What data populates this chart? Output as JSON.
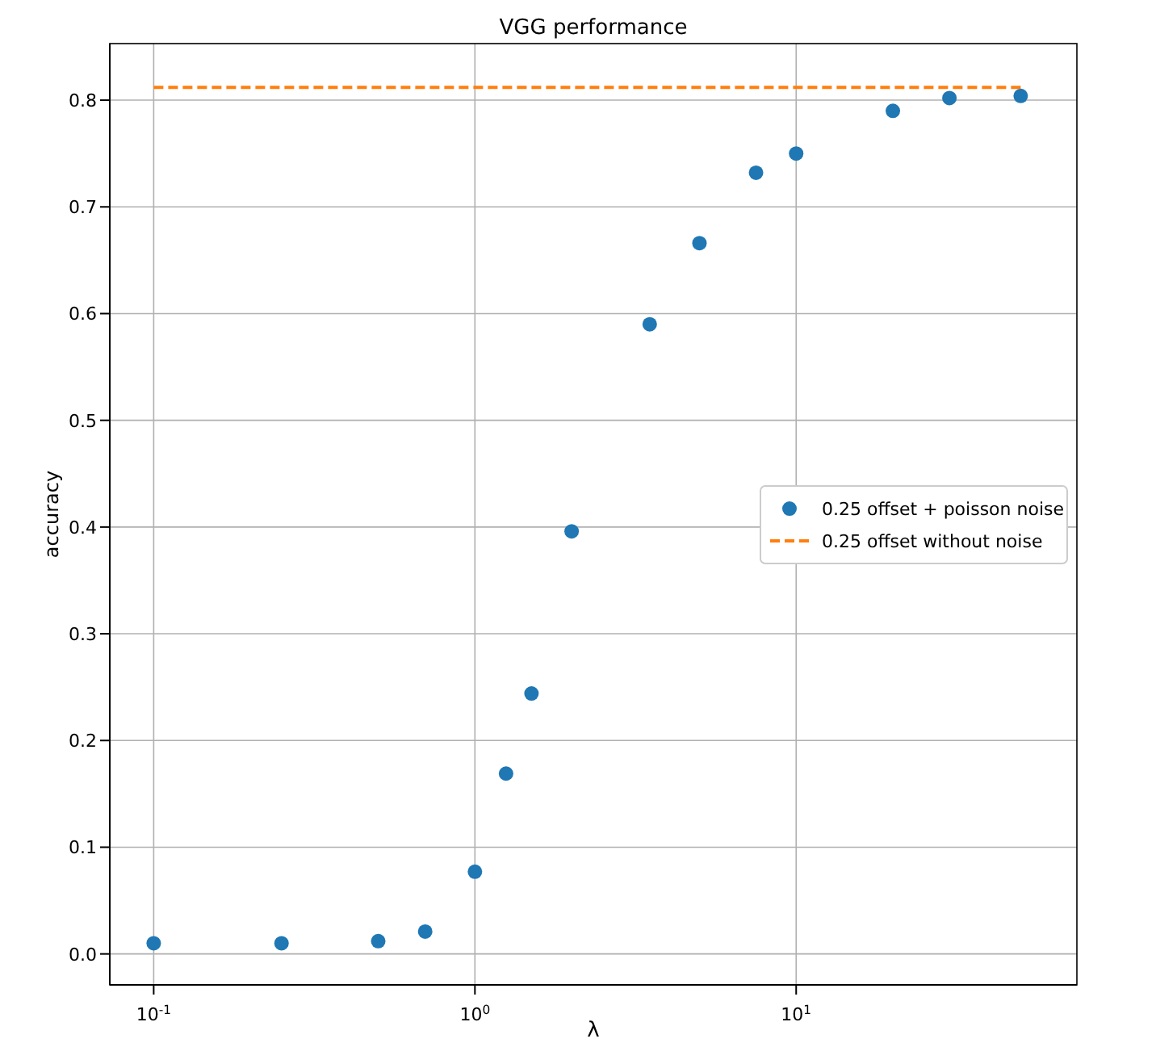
{
  "chart_data": {
    "type": "scatter",
    "title": "VGG performance",
    "xlabel": "λ",
    "ylabel": "accuracy",
    "log": "x",
    "xlim": [
      0.073,
      74.8
    ],
    "ylim": [
      -0.029,
      0.853
    ],
    "xticks": [
      {
        "value": 0.1,
        "label": "10$^{-1}$"
      },
      {
        "value": 1,
        "label": "10$^{0}$"
      },
      {
        "value": 10,
        "label": "10$^{1}$"
      }
    ],
    "yticks": [
      {
        "value": 0,
        "label": "0.0"
      },
      {
        "value": 0.1,
        "label": "0.1"
      },
      {
        "value": 0.2,
        "label": "0.2"
      },
      {
        "value": 0.3,
        "label": "0.3"
      },
      {
        "value": 0.4,
        "label": "0.4"
      },
      {
        "value": 0.5,
        "label": "0.5"
      },
      {
        "value": 0.6,
        "label": "0.6"
      },
      {
        "value": 0.7,
        "label": "0.7"
      },
      {
        "value": 0.8,
        "label": "0.8"
      }
    ],
    "grid": true,
    "legend": "right",
    "series": [
      {
        "name": "0.25 offset + poisson noise",
        "marker": "circle",
        "color": "#1f77b4",
        "x": [
          0.1,
          0.25,
          0.5,
          0.7,
          1,
          1.25,
          1.5,
          2,
          3.5,
          5,
          7.5,
          10,
          20,
          30,
          50
        ],
        "values": [
          0.01,
          0.01,
          0.012,
          0.021,
          0.077,
          0.169,
          0.244,
          0.396,
          0.59,
          0.666,
          0.732,
          0.75,
          0.79,
          0.802,
          0.804
        ]
      },
      {
        "name": "0.25 offset without noise",
        "type": "line",
        "line_style": "dashed",
        "color": "#ff7f0e",
        "x": [
          0.1,
          50
        ],
        "values": [
          0.812,
          0.812
        ]
      }
    ]
  }
}
